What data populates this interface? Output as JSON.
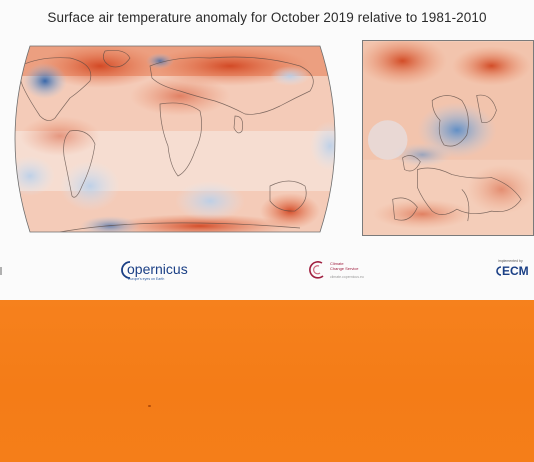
{
  "title": "Surface air temperature anomaly for October 2019 relative to 1981-2010",
  "logos": {
    "copernicus": {
      "word": "opernicus",
      "sub": "Europe's eyes on Earth"
    },
    "c3s": {
      "lines": [
        "Climate",
        "Change Service"
      ],
      "url": "climate.copernicus.eu"
    },
    "ecmwf": {
      "small": "implemented by",
      "word": "ECM"
    }
  },
  "colors": {
    "warm": "#d4471f",
    "warm_light": "#f2a78a",
    "cool": "#3c72b4",
    "cool_light": "#a9c6e6",
    "neutral": "#f6f1ee",
    "bottom_panel": "#f57e19"
  }
}
